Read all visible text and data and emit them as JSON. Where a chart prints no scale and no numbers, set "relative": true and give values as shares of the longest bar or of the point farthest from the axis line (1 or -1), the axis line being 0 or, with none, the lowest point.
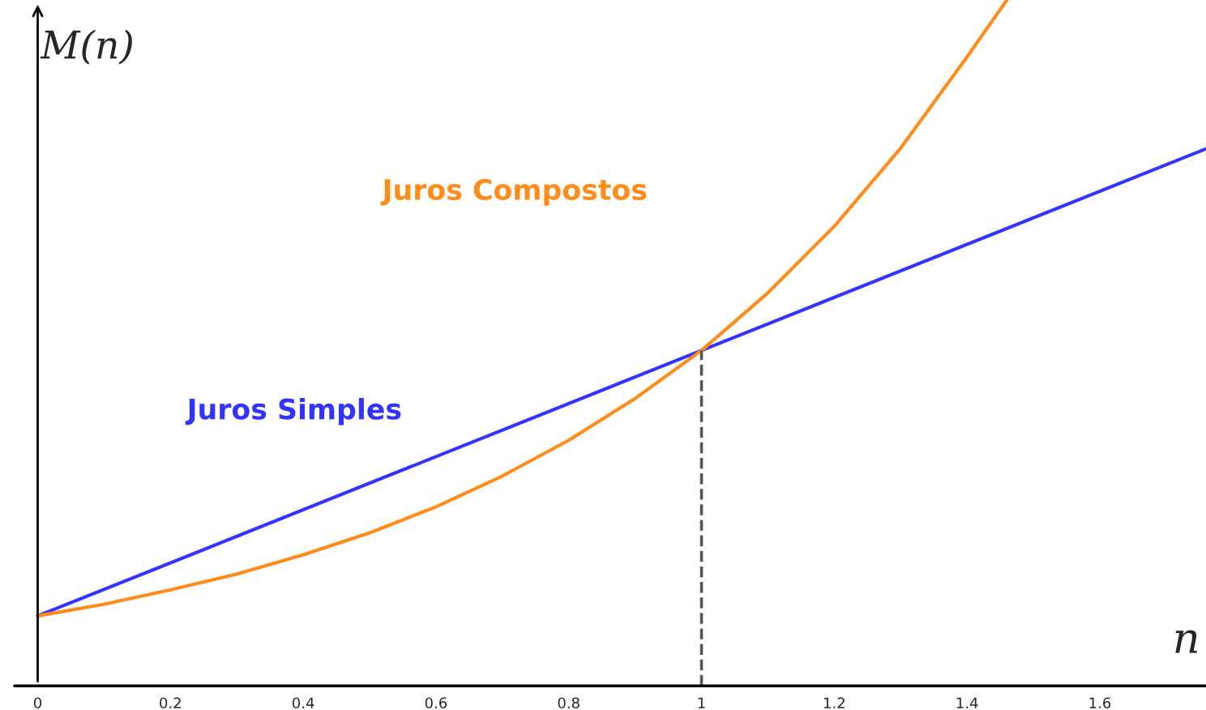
{
  "chart_data": {
    "type": "line",
    "relative": true,
    "xlabel": "n",
    "ylabel": "M(n)",
    "xlim": [
      -0.035,
      1.76
    ],
    "xticks": [
      0,
      0.2,
      0.4,
      0.6,
      0.8,
      1,
      1.2,
      1.4,
      1.6
    ],
    "tick_labels": "x",
    "grid": false,
    "legend": false,
    "series": [
      {
        "name": "Juros Simples",
        "color": "#3333ff",
        "x": [
          0,
          1,
          1.76
        ],
        "values": [
          0.102,
          0.489,
          0.783
        ]
      },
      {
        "name": "Juros Compostos",
        "color": "#ff8c1a",
        "x": [
          0,
          0.1,
          0.2,
          0.3,
          0.4,
          0.5,
          0.6,
          0.7,
          0.8,
          0.9,
          1,
          1.1,
          1.2,
          1.3,
          1.4,
          1.46
        ],
        "values": [
          0.102,
          0.119,
          0.14,
          0.163,
          0.191,
          0.223,
          0.261,
          0.306,
          0.358,
          0.419,
          0.489,
          0.573,
          0.67,
          0.784,
          0.917,
          1.0
        ]
      }
    ],
    "ref_lines": [
      {
        "axis": "x",
        "value": 1,
        "color": "#555555",
        "line_style": "dashed"
      }
    ]
  }
}
